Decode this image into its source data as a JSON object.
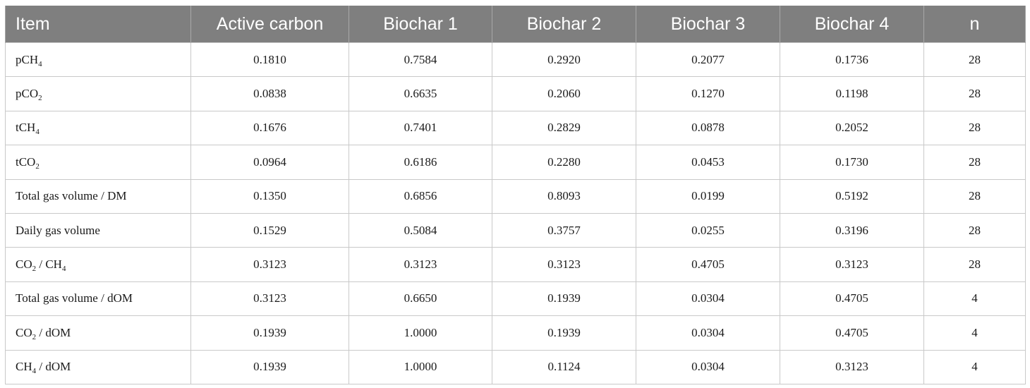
{
  "table": {
    "headers": [
      "Item",
      "Active carbon",
      "Biochar 1",
      "Biochar 2",
      "Biochar 3",
      "Biochar 4",
      "n"
    ],
    "rows": [
      {
        "item": {
          "pre": "pCH",
          "sub": "4",
          "post": ""
        },
        "values": [
          "0.1810",
          "0.7584",
          "0.2920",
          "0.2077",
          "0.1736",
          "28"
        ]
      },
      {
        "item": {
          "pre": "pCO",
          "sub": "2",
          "post": ""
        },
        "values": [
          "0.0838",
          "0.6635",
          "0.2060",
          "0.1270",
          "0.1198",
          "28"
        ]
      },
      {
        "item": {
          "pre": "tCH",
          "sub": "4",
          "post": ""
        },
        "values": [
          "0.1676",
          "0.7401",
          "0.2829",
          "0.0878",
          "0.2052",
          "28"
        ]
      },
      {
        "item": {
          "pre": "tCO",
          "sub": "2",
          "post": ""
        },
        "values": [
          "0.0964",
          "0.6186",
          "0.2280",
          "0.0453",
          "0.1730",
          "28"
        ]
      },
      {
        "item": {
          "pre": "Total gas volume / DM",
          "sub": "",
          "post": ""
        },
        "values": [
          "0.1350",
          "0.6856",
          "0.8093",
          "0.0199",
          "0.5192",
          "28"
        ]
      },
      {
        "item": {
          "pre": "Daily gas volume",
          "sub": "",
          "post": ""
        },
        "values": [
          "0.1529",
          "0.5084",
          "0.3757",
          "0.0255",
          "0.3196",
          "28"
        ]
      },
      {
        "item": {
          "pre": "CO",
          "sub": "2",
          "post": " / CH",
          "sub2": "4"
        },
        "values": [
          "0.3123",
          "0.3123",
          "0.3123",
          "0.4705",
          "0.3123",
          "28"
        ]
      },
      {
        "item": {
          "pre": "Total gas volume / dOM",
          "sub": "",
          "post": ""
        },
        "values": [
          "0.3123",
          "0.6650",
          "0.1939",
          "0.0304",
          "0.4705",
          "4"
        ]
      },
      {
        "item": {
          "pre": "CO",
          "sub": "2",
          "post": " / dOM"
        },
        "values": [
          "0.1939",
          "1.0000",
          "0.1939",
          "0.0304",
          "0.4705",
          "4"
        ]
      },
      {
        "item": {
          "pre": "CH",
          "sub": "4",
          "post": " / dOM"
        },
        "values": [
          "0.1939",
          "1.0000",
          "0.1124",
          "0.0304",
          "0.3123",
          "4"
        ]
      }
    ]
  }
}
